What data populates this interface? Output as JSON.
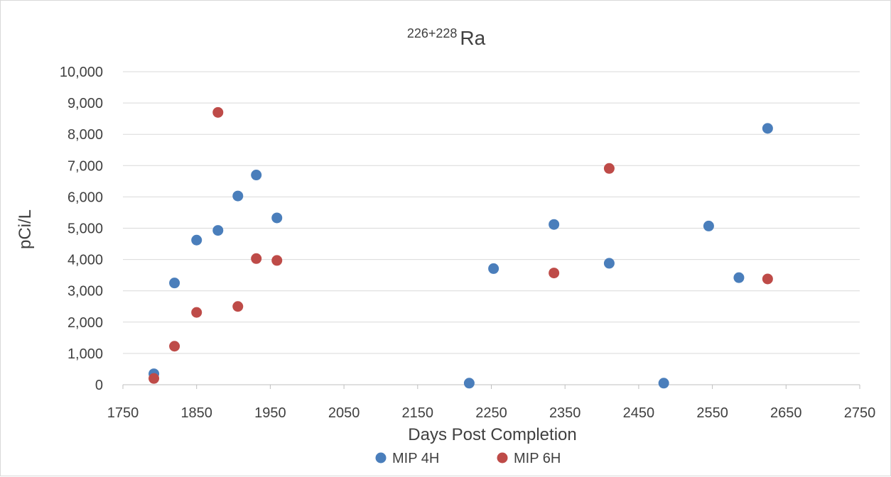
{
  "chart_data": {
    "type": "scatter",
    "title_superscript": "226+228",
    "title_main": "Ra",
    "xlabel": "Days Post Completion",
    "ylabel": "pCi/L",
    "xlim": [
      1750,
      2750
    ],
    "ylim": [
      0,
      10000
    ],
    "x_ticks": [
      "1750",
      "1850",
      "1950",
      "2050",
      "2150",
      "2250",
      "2350",
      "2450",
      "2550",
      "2650",
      "2750"
    ],
    "y_ticks": [
      "0",
      "1,000",
      "2,000",
      "3,000",
      "4,000",
      "5,000",
      "6,000",
      "7,000",
      "8,000",
      "9,000",
      "10,000"
    ],
    "grid": "horizontal",
    "legend_position": "bottom",
    "series": [
      {
        "name": "MIP 4H",
        "color": "#4a7ebb",
        "points": [
          {
            "x": 1792,
            "y": 350
          },
          {
            "x": 1820,
            "y": 3250
          },
          {
            "x": 1850,
            "y": 4620
          },
          {
            "x": 1879,
            "y": 4930
          },
          {
            "x": 1906,
            "y": 6030
          },
          {
            "x": 1931,
            "y": 6700
          },
          {
            "x": 1959,
            "y": 5330
          },
          {
            "x": 2220,
            "y": 50
          },
          {
            "x": 2253,
            "y": 3710
          },
          {
            "x": 2335,
            "y": 5120
          },
          {
            "x": 2410,
            "y": 3880
          },
          {
            "x": 2484,
            "y": 50
          },
          {
            "x": 2545,
            "y": 5070
          },
          {
            "x": 2586,
            "y": 3420
          },
          {
            "x": 2625,
            "y": 8190
          }
        ]
      },
      {
        "name": "MIP 6H",
        "color": "#be4b48",
        "points": [
          {
            "x": 1792,
            "y": 200
          },
          {
            "x": 1820,
            "y": 1230
          },
          {
            "x": 1850,
            "y": 2310
          },
          {
            "x": 1879,
            "y": 8700
          },
          {
            "x": 1906,
            "y": 2500
          },
          {
            "x": 1931,
            "y": 4030
          },
          {
            "x": 1959,
            "y": 3970
          },
          {
            "x": 2335,
            "y": 3570
          },
          {
            "x": 2410,
            "y": 6910
          },
          {
            "x": 2625,
            "y": 3380
          }
        ]
      }
    ]
  }
}
